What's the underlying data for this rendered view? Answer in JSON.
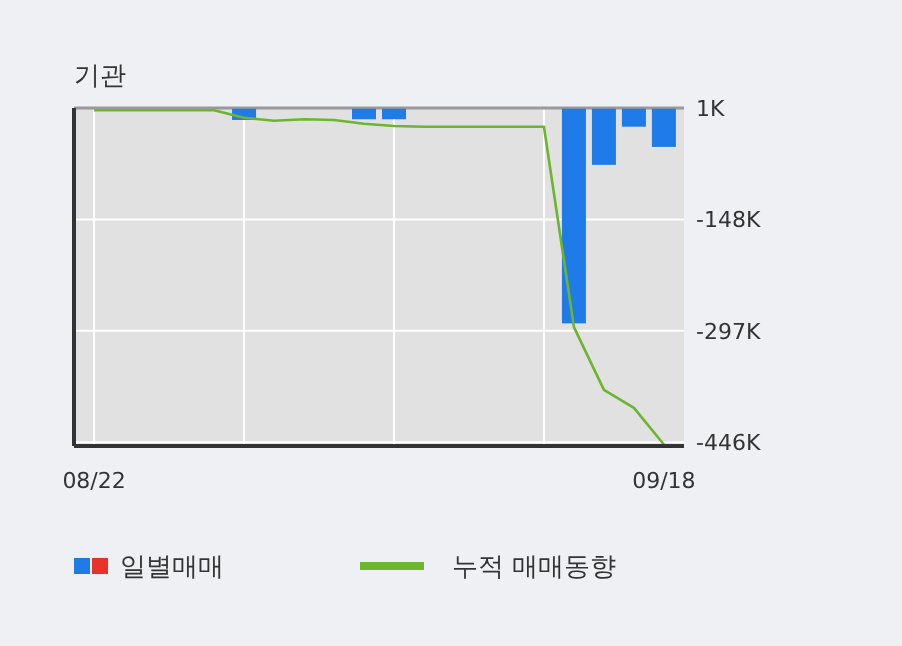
{
  "chart_data": {
    "type": "bar",
    "title": "기관",
    "categories": [
      "08/22",
      null,
      null,
      null,
      null,
      null,
      null,
      null,
      null,
      null,
      null,
      null,
      null,
      null,
      null,
      null,
      null,
      null,
      null,
      "09/18"
    ],
    "series": [
      {
        "name": "일별매매",
        "color": "#1f7be8",
        "values": [
          0,
          0,
          0,
          0,
          0,
          -15000,
          0,
          0,
          0,
          -14000,
          -14000,
          0,
          0,
          0,
          0,
          0,
          -287000,
          -75000,
          -24000,
          -51000
        ]
      },
      {
        "name": "누적 매매동향",
        "type": "line",
        "color": "#6cb52e",
        "values": [
          -2000,
          -2000,
          -2000,
          -2000,
          -2000,
          -12000,
          -16000,
          -14000,
          -15000,
          -20000,
          -23000,
          -24000,
          -24000,
          -24000,
          -24000,
          -24000,
          -292000,
          -376000,
          -400000,
          -449000
        ]
      }
    ],
    "ylim": [
      -451000,
      1000
    ],
    "yticks": [
      {
        "value": 1000,
        "label": "1K"
      },
      {
        "value": -148000,
        "label": "-148K"
      },
      {
        "value": -297000,
        "label": "-297K"
      },
      {
        "value": -446000,
        "label": "-446K"
      }
    ],
    "grid": true,
    "legend": "bottom"
  }
}
